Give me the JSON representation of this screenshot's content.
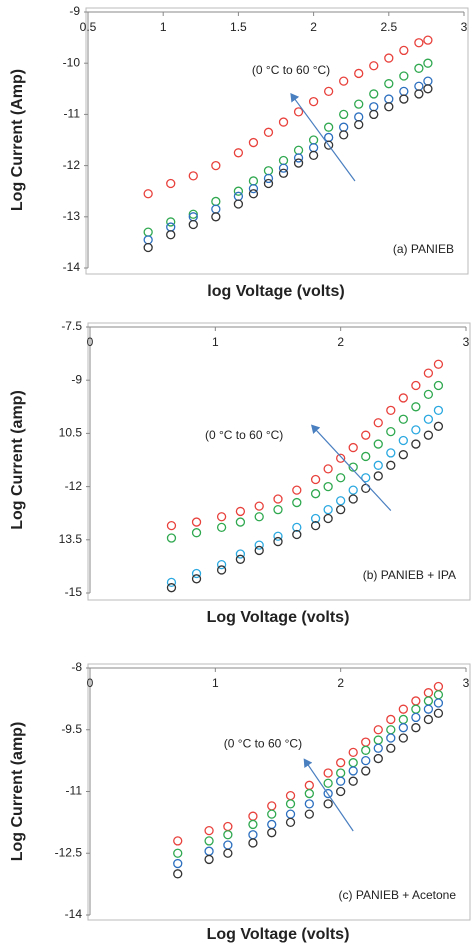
{
  "chart_data": [
    {
      "type": "scatter",
      "x_label": "log Voltage (volts)",
      "y_label": "Log Current (Amp)",
      "annotation": "(0 °C to 60 °C)",
      "panel_label": "(a) PANIEB",
      "xlim": [
        0.5,
        3
      ],
      "ylim": [
        -14,
        -9
      ],
      "xticks": [
        0.5,
        1,
        1.5,
        2,
        2.5,
        3
      ],
      "yticks": [
        -14,
        -13,
        -12,
        -11,
        -10,
        -9
      ],
      "x": [
        0.9,
        1.05,
        1.2,
        1.35,
        1.5,
        1.6,
        1.7,
        1.8,
        1.9,
        2.0,
        2.1,
        2.2,
        2.3,
        2.4,
        2.5,
        2.6,
        2.7,
        2.76
      ],
      "series": [
        {
          "color": "#e8413c",
          "values": [
            -12.55,
            -12.35,
            -12.2,
            -12.0,
            -11.75,
            -11.55,
            -11.35,
            -11.15,
            -10.95,
            -10.75,
            -10.55,
            -10.35,
            -10.2,
            -10.05,
            -9.9,
            -9.75,
            -9.6,
            -9.55
          ]
        },
        {
          "color": "#2fa84f",
          "values": [
            -13.3,
            -13.1,
            -12.95,
            -12.7,
            -12.5,
            -12.3,
            -12.1,
            -11.9,
            -11.7,
            -11.5,
            -11.25,
            -11.0,
            -10.8,
            -10.6,
            -10.4,
            -10.25,
            -10.1,
            -10.0
          ]
        },
        {
          "color": "#2c6fbf",
          "values": [
            -13.45,
            -13.2,
            -13.0,
            -12.85,
            -12.6,
            -12.45,
            -12.25,
            -12.05,
            -11.85,
            -11.65,
            -11.45,
            -11.25,
            -11.05,
            -10.85,
            -10.7,
            -10.55,
            -10.45,
            -10.35
          ]
        },
        {
          "color": "#333333",
          "values": [
            -13.6,
            -13.35,
            -13.15,
            -13.0,
            -12.75,
            -12.55,
            -12.35,
            -12.15,
            -11.95,
            -11.8,
            -11.6,
            -11.4,
            -11.2,
            -11.0,
            -10.85,
            -10.7,
            -10.6,
            -10.5
          ]
        }
      ]
    },
    {
      "type": "scatter",
      "x_label": "Log Voltage  (volts)",
      "y_label": "Log Current (amp)",
      "annotation": "(0 °C to 60 °C)",
      "panel_label": "(b) PANIEB + IPA",
      "xlim": [
        0,
        3
      ],
      "ylim": [
        -15,
        -7.5
      ],
      "xticks": [
        0,
        1,
        2,
        3
      ],
      "yticks": [
        -15,
        {
          "value": -13.5,
          "label": "13.5"
        },
        -12,
        {
          "value": -10.5,
          "label": "10.5"
        },
        -9,
        -7.5
      ],
      "x": [
        0.65,
        0.85,
        1.05,
        1.2,
        1.35,
        1.5,
        1.65,
        1.8,
        1.9,
        2.0,
        2.1,
        2.2,
        2.3,
        2.4,
        2.5,
        2.6,
        2.7,
        2.78
      ],
      "series": [
        {
          "color": "#e8413c",
          "values": [
            -13.1,
            -13.0,
            -12.85,
            -12.7,
            -12.55,
            -12.35,
            -12.1,
            -11.8,
            -11.5,
            -11.2,
            -10.9,
            -10.55,
            -10.2,
            -9.85,
            -9.5,
            -9.15,
            -8.8,
            -8.55
          ]
        },
        {
          "color": "#2fa84f",
          "values": [
            -13.45,
            -13.3,
            -13.15,
            -13.0,
            -12.85,
            -12.65,
            -12.45,
            -12.2,
            -12.0,
            -11.75,
            -11.45,
            -11.15,
            -10.8,
            -10.45,
            -10.1,
            -9.75,
            -9.4,
            -9.15
          ]
        },
        {
          "color": "#2aa8e0",
          "values": [
            -14.7,
            -14.45,
            -14.2,
            -13.9,
            -13.65,
            -13.4,
            -13.15,
            -12.9,
            -12.65,
            -12.4,
            -12.1,
            -11.75,
            -11.4,
            -11.05,
            -10.7,
            -10.4,
            -10.1,
            -9.85
          ]
        },
        {
          "color": "#333333",
          "values": [
            -14.85,
            -14.6,
            -14.35,
            -14.05,
            -13.8,
            -13.55,
            -13.35,
            -13.1,
            -12.9,
            -12.65,
            -12.35,
            -12.05,
            -11.7,
            -11.4,
            -11.1,
            -10.8,
            -10.55,
            -10.3
          ]
        }
      ]
    },
    {
      "type": "scatter",
      "x_label": "Log Voltage (volts)",
      "y_label": "Log Current (amp)",
      "annotation": "(0 °C to 60 °C)",
      "panel_label": "(c) PANIEB + Acetone",
      "xlim": [
        0,
        3
      ],
      "ylim": [
        -14,
        -8
      ],
      "xticks": [
        0,
        1,
        2,
        3
      ],
      "yticks": [
        -14,
        -12.5,
        -11,
        -9.5,
        -8
      ],
      "x": [
        0.7,
        0.95,
        1.1,
        1.3,
        1.45,
        1.6,
        1.75,
        1.9,
        2.0,
        2.1,
        2.2,
        2.3,
        2.4,
        2.5,
        2.6,
        2.7,
        2.78
      ],
      "series": [
        {
          "color": "#e8413c",
          "values": [
            -12.2,
            -11.95,
            -11.85,
            -11.6,
            -11.35,
            -11.1,
            -10.85,
            -10.55,
            -10.3,
            -10.05,
            -9.8,
            -9.5,
            -9.25,
            -9.0,
            -8.8,
            -8.6,
            -8.45
          ]
        },
        {
          "color": "#2fa84f",
          "values": [
            -12.5,
            -12.2,
            -12.05,
            -11.8,
            -11.55,
            -11.3,
            -11.05,
            -10.8,
            -10.55,
            -10.3,
            -10.0,
            -9.75,
            -9.5,
            -9.25,
            -9.0,
            -8.8,
            -8.65
          ]
        },
        {
          "color": "#2c6fbf",
          "values": [
            -12.75,
            -12.45,
            -12.3,
            -12.05,
            -11.8,
            -11.55,
            -11.3,
            -11.05,
            -10.75,
            -10.5,
            -10.25,
            -9.95,
            -9.7,
            -9.45,
            -9.2,
            -9.0,
            -8.85
          ]
        },
        {
          "color": "#333333",
          "values": [
            -13.0,
            -12.65,
            -12.5,
            -12.25,
            -12.0,
            -11.75,
            -11.55,
            -11.3,
            -11.0,
            -10.75,
            -10.5,
            -10.2,
            -9.95,
            -9.7,
            -9.45,
            -9.25,
            -9.1
          ]
        }
      ]
    }
  ]
}
